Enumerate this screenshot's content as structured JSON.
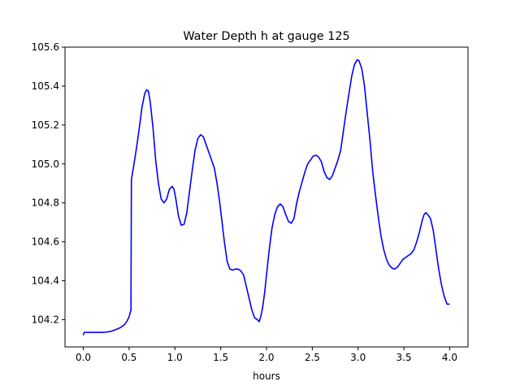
{
  "chart_data": {
    "type": "line",
    "title": "Water Depth h at gauge 125",
    "xlabel": "hours",
    "ylabel": "",
    "xlim": [
      -0.2,
      4.2
    ],
    "ylim": [
      104.06,
      105.6
    ],
    "grid": false,
    "x_ticks": [
      "0.0",
      "0.5",
      "1.0",
      "1.5",
      "2.0",
      "2.5",
      "3.0",
      "3.5",
      "4.0"
    ],
    "y_ticks": [
      "104.2",
      "104.4",
      "104.6",
      "104.8",
      "105.0",
      "105.2",
      "105.4",
      "105.6"
    ],
    "series": [
      {
        "color": "#0000ff",
        "points": [
          [
            0.0,
            104.12
          ],
          [
            0.01,
            104.135
          ],
          [
            0.1,
            104.135
          ],
          [
            0.2,
            104.135
          ],
          [
            0.25,
            104.136
          ],
          [
            0.3,
            104.14
          ],
          [
            0.35,
            104.148
          ],
          [
            0.4,
            104.158
          ],
          [
            0.45,
            104.175
          ],
          [
            0.48,
            104.195
          ],
          [
            0.5,
            104.215
          ],
          [
            0.52,
            104.25
          ],
          [
            0.525,
            104.92
          ],
          [
            0.55,
            104.99
          ],
          [
            0.58,
            105.08
          ],
          [
            0.61,
            105.18
          ],
          [
            0.64,
            105.29
          ],
          [
            0.67,
            105.36
          ],
          [
            0.69,
            105.38
          ],
          [
            0.71,
            105.375
          ],
          [
            0.73,
            105.32
          ],
          [
            0.76,
            105.19
          ],
          [
            0.79,
            105.02
          ],
          [
            0.82,
            104.9
          ],
          [
            0.85,
            104.82
          ],
          [
            0.88,
            104.8
          ],
          [
            0.91,
            104.82
          ],
          [
            0.94,
            104.87
          ],
          [
            0.97,
            104.885
          ],
          [
            0.99,
            104.87
          ],
          [
            1.01,
            104.82
          ],
          [
            1.04,
            104.73
          ],
          [
            1.07,
            104.685
          ],
          [
            1.1,
            104.69
          ],
          [
            1.13,
            104.75
          ],
          [
            1.16,
            104.86
          ],
          [
            1.19,
            104.97
          ],
          [
            1.22,
            105.07
          ],
          [
            1.25,
            105.13
          ],
          [
            1.28,
            105.15
          ],
          [
            1.31,
            105.14
          ],
          [
            1.34,
            105.1
          ],
          [
            1.37,
            105.06
          ],
          [
            1.4,
            105.02
          ],
          [
            1.43,
            104.98
          ],
          [
            1.46,
            104.9
          ],
          [
            1.49,
            104.8
          ],
          [
            1.51,
            104.72
          ],
          [
            1.54,
            104.6
          ],
          [
            1.57,
            104.5
          ],
          [
            1.6,
            104.46
          ],
          [
            1.63,
            104.455
          ],
          [
            1.66,
            104.46
          ],
          [
            1.69,
            104.46
          ],
          [
            1.72,
            104.45
          ],
          [
            1.75,
            104.43
          ],
          [
            1.78,
            104.37
          ],
          [
            1.81,
            104.31
          ],
          [
            1.84,
            104.25
          ],
          [
            1.87,
            104.21
          ],
          [
            1.9,
            104.2
          ],
          [
            1.92,
            104.19
          ],
          [
            1.94,
            104.22
          ],
          [
            1.96,
            104.27
          ],
          [
            1.98,
            104.34
          ],
          [
            2.0,
            104.43
          ],
          [
            2.03,
            104.56
          ],
          [
            2.06,
            104.67
          ],
          [
            2.09,
            104.74
          ],
          [
            2.12,
            104.78
          ],
          [
            2.15,
            104.795
          ],
          [
            2.18,
            104.78
          ],
          [
            2.21,
            104.74
          ],
          [
            2.24,
            104.705
          ],
          [
            2.27,
            104.695
          ],
          [
            2.3,
            104.72
          ],
          [
            2.33,
            104.8
          ],
          [
            2.36,
            104.86
          ],
          [
            2.39,
            104.91
          ],
          [
            2.42,
            104.96
          ],
          [
            2.45,
            105.0
          ],
          [
            2.48,
            105.02
          ],
          [
            2.51,
            105.04
          ],
          [
            2.54,
            105.045
          ],
          [
            2.57,
            105.035
          ],
          [
            2.6,
            105.01
          ],
          [
            2.63,
            104.96
          ],
          [
            2.66,
            104.93
          ],
          [
            2.69,
            104.92
          ],
          [
            2.72,
            104.94
          ],
          [
            2.75,
            104.98
          ],
          [
            2.78,
            105.02
          ],
          [
            2.81,
            105.07
          ],
          [
            2.84,
            105.17
          ],
          [
            2.87,
            105.27
          ],
          [
            2.9,
            105.36
          ],
          [
            2.93,
            105.45
          ],
          [
            2.96,
            105.51
          ],
          [
            2.99,
            105.535
          ],
          [
            3.01,
            105.53
          ],
          [
            3.04,
            105.49
          ],
          [
            3.07,
            105.4
          ],
          [
            3.1,
            105.26
          ],
          [
            3.13,
            105.12
          ],
          [
            3.16,
            104.96
          ],
          [
            3.19,
            104.84
          ],
          [
            3.22,
            104.73
          ],
          [
            3.25,
            104.63
          ],
          [
            3.28,
            104.56
          ],
          [
            3.31,
            104.51
          ],
          [
            3.34,
            104.48
          ],
          [
            3.37,
            104.465
          ],
          [
            3.4,
            104.46
          ],
          [
            3.43,
            104.47
          ],
          [
            3.46,
            104.49
          ],
          [
            3.49,
            104.51
          ],
          [
            3.52,
            104.52
          ],
          [
            3.55,
            104.53
          ],
          [
            3.58,
            104.54
          ],
          [
            3.61,
            104.56
          ],
          [
            3.64,
            104.6
          ],
          [
            3.67,
            104.65
          ],
          [
            3.7,
            104.71
          ],
          [
            3.72,
            104.74
          ],
          [
            3.74,
            104.75
          ],
          [
            3.76,
            104.74
          ],
          [
            3.79,
            104.72
          ],
          [
            3.82,
            104.66
          ],
          [
            3.85,
            104.56
          ],
          [
            3.88,
            104.46
          ],
          [
            3.91,
            104.38
          ],
          [
            3.94,
            104.32
          ],
          [
            3.97,
            104.28
          ],
          [
            4.0,
            104.28
          ]
        ]
      }
    ]
  }
}
